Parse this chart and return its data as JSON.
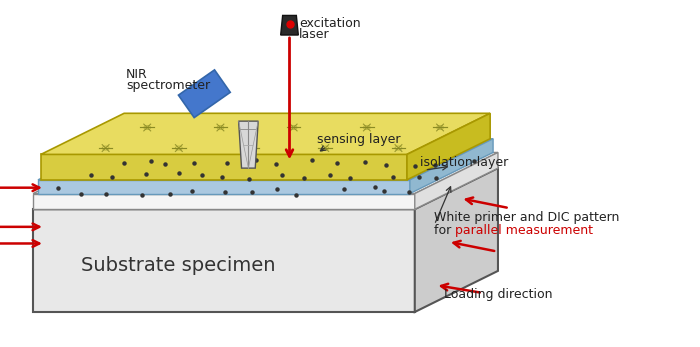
{
  "bg_color": "#ffffff",
  "fig_width": 7.0,
  "fig_height": 3.47,
  "dpi": 100,
  "substrate": {
    "color_top": "#e0e0e0",
    "color_front": "#e8e8e8",
    "color_side": "#cccccc",
    "edge_color": "#555555",
    "label": "Substrate specimen",
    "label_fontsize": 14,
    "label_color": "#333333"
  },
  "dic_layer": {
    "color_top": "#f0f0f0",
    "color_front": "#f5f5f5",
    "color_side": "#e0e0e0",
    "edge_color": "#888888"
  },
  "isolation_layer": {
    "color_top": "#b8d4e8",
    "color_front": "#aac8e0",
    "color_side": "#90b8d0",
    "edge_color": "#6699bb"
  },
  "sensing_layer": {
    "color_top": "#e8dc60",
    "color_front": "#d8cc40",
    "color_side": "#c8bc20",
    "edge_color": "#a89800"
  },
  "laser_color": "#cc0000",
  "laser_body_color": "#333333",
  "nir_color": "#4477cc",
  "prism_color": "#cccccc",
  "arrow_color": "#cc0000",
  "label_color": "#222222",
  "dim_arrow_color": "#333333",
  "annotations": {
    "excitation1": "excitation",
    "excitation2": "laser",
    "nir1": "NIR",
    "nir2": "spectrometer",
    "sensing": "sensing layer",
    "isolation": "isolation layer",
    "white_primer1": "White primer and DIC pattern",
    "white_primer2": "for ",
    "parallel": "parallel measurement",
    "loading": "Loading direction",
    "substrate": "Substrate specimen"
  }
}
